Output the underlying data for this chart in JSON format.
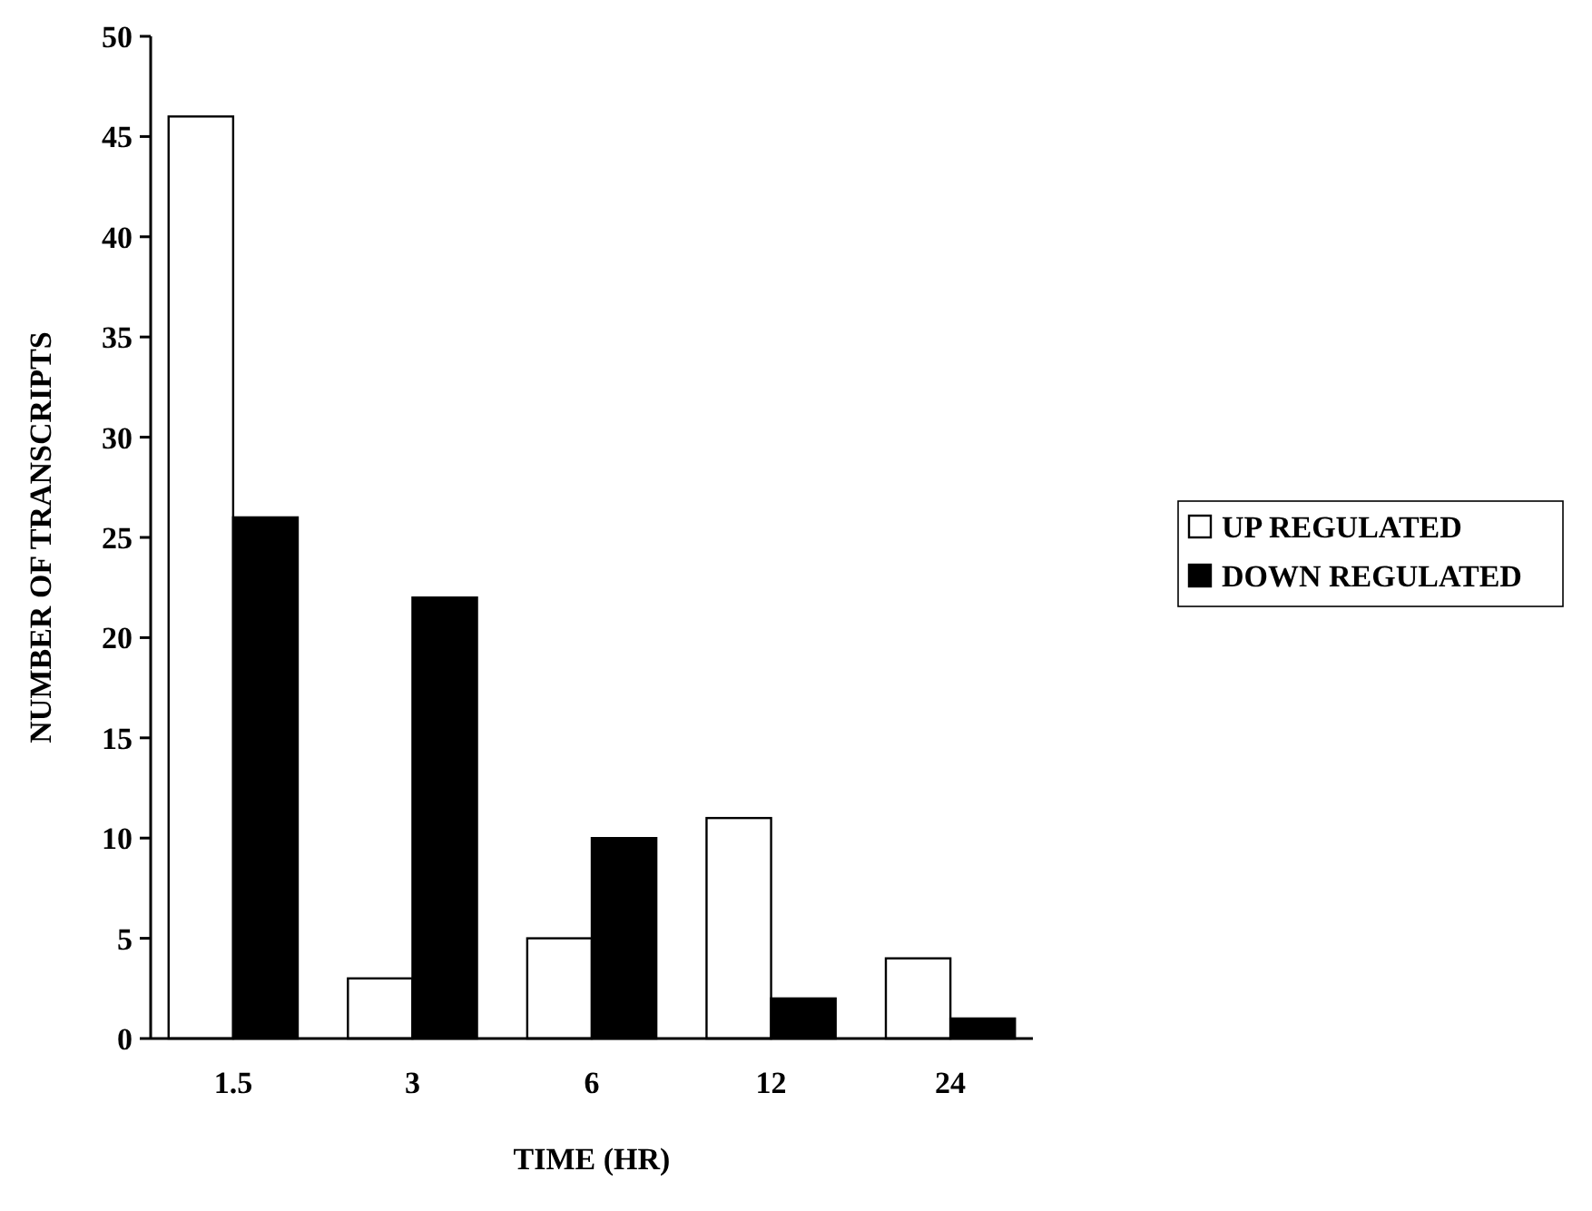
{
  "chart_data": {
    "type": "bar",
    "xlabel": "TIME (HR)",
    "ylabel": "NUMBER OF TRANSCRIPTS",
    "categories": [
      "1.5",
      "3",
      "6",
      "12",
      "24"
    ],
    "series": [
      {
        "name": "UP REGULATED",
        "color": "#ffffff",
        "values": [
          46,
          3,
          5,
          11,
          4
        ]
      },
      {
        "name": "DOWN REGULATED",
        "color": "#000000",
        "values": [
          26,
          22,
          10,
          2,
          1
        ]
      }
    ],
    "ylim": [
      0,
      50
    ],
    "yticks": [
      0,
      5,
      10,
      15,
      20,
      25,
      30,
      35,
      40,
      45,
      50
    ],
    "grid": false,
    "legend": "right"
  }
}
